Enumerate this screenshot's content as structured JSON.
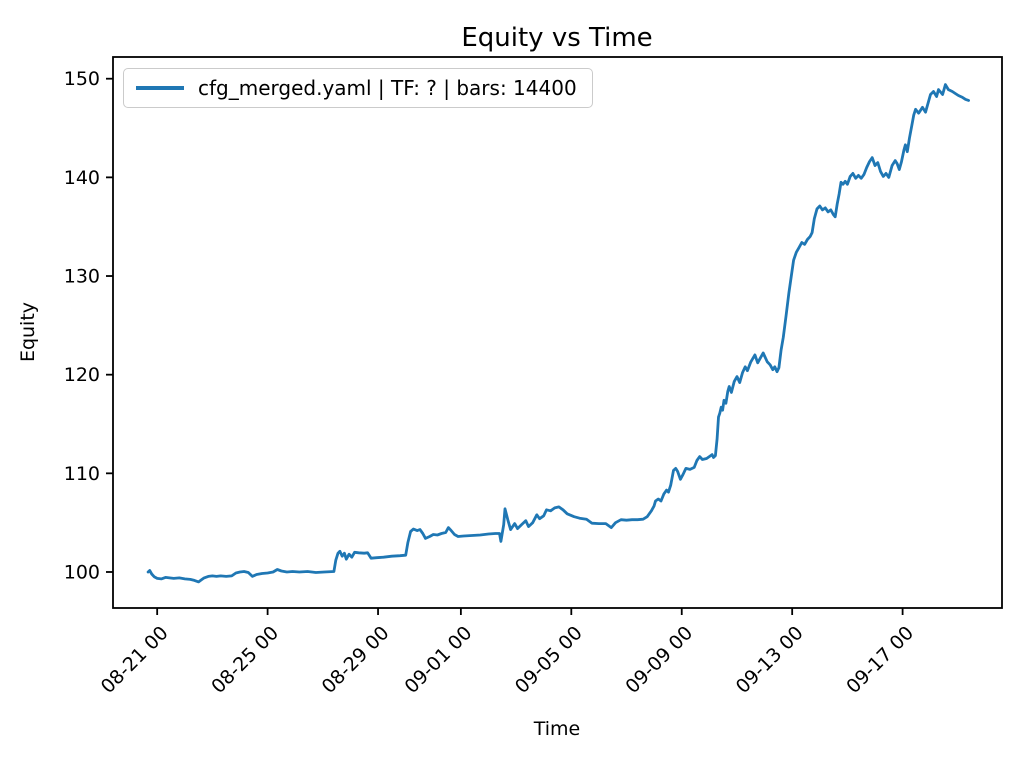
{
  "window": {
    "background": "#ffffff"
  },
  "chart_data": {
    "type": "line",
    "title": "Equity vs Time",
    "xlabel": "Time",
    "ylabel": "Equity",
    "legend": {
      "position": "upper-left",
      "entries": [
        {
          "label": "cfg_merged.yaml | TF: ? | bars: 14400",
          "color": "#1f77b4"
        }
      ]
    },
    "grid": false,
    "x_unit_note": "x values are fractional day offsets; day 0 corresponds to the day before the 08-21 00 tick",
    "xlim": [
      -0.6,
      31.6
    ],
    "ylim": [
      96.35,
      152.2
    ],
    "xticks": {
      "rotation": 45,
      "positions": [
        1,
        5,
        9,
        12,
        16,
        20,
        24,
        28
      ],
      "labels": [
        "08-21 00",
        "08-25 00",
        "08-29 00",
        "09-01 00",
        "09-05 00",
        "09-09 00",
        "09-13 00",
        "09-17 00"
      ]
    },
    "yticks": {
      "positions": [
        100,
        110,
        120,
        130,
        140,
        150
      ],
      "labels": [
        "100",
        "110",
        "120",
        "130",
        "140",
        "150"
      ]
    },
    "series": [
      {
        "name": "cfg_merged.yaml | TF: ? | bars: 14400",
        "color": "#1f77b4",
        "line_width": 2.8,
        "points": [
          [
            0.67,
            100.0
          ],
          [
            0.73,
            100.15
          ],
          [
            0.8,
            99.8
          ],
          [
            0.9,
            99.5
          ],
          [
            1.0,
            99.35
          ],
          [
            1.15,
            99.3
          ],
          [
            1.3,
            99.45
          ],
          [
            1.45,
            99.4
          ],
          [
            1.6,
            99.35
          ],
          [
            1.8,
            99.4
          ],
          [
            2.0,
            99.3
          ],
          [
            2.2,
            99.25
          ],
          [
            2.35,
            99.15
          ],
          [
            2.5,
            99.0
          ],
          [
            2.6,
            99.2
          ],
          [
            2.7,
            99.4
          ],
          [
            2.85,
            99.55
          ],
          [
            3.0,
            99.6
          ],
          [
            3.15,
            99.55
          ],
          [
            3.3,
            99.6
          ],
          [
            3.5,
            99.55
          ],
          [
            3.7,
            99.6
          ],
          [
            3.85,
            99.9
          ],
          [
            4.0,
            100.0
          ],
          [
            4.15,
            100.05
          ],
          [
            4.3,
            99.95
          ],
          [
            4.45,
            99.55
          ],
          [
            4.6,
            99.75
          ],
          [
            4.8,
            99.85
          ],
          [
            5.0,
            99.9
          ],
          [
            5.2,
            100.0
          ],
          [
            5.35,
            100.25
          ],
          [
            5.5,
            100.1
          ],
          [
            5.7,
            100.0
          ],
          [
            5.9,
            100.05
          ],
          [
            6.15,
            100.0
          ],
          [
            6.45,
            100.05
          ],
          [
            6.75,
            99.95
          ],
          [
            7.05,
            100.0
          ],
          [
            7.4,
            100.05
          ],
          [
            7.47,
            101.2
          ],
          [
            7.55,
            101.9
          ],
          [
            7.62,
            102.1
          ],
          [
            7.7,
            101.6
          ],
          [
            7.78,
            101.9
          ],
          [
            7.85,
            101.3
          ],
          [
            7.95,
            101.8
          ],
          [
            8.05,
            101.5
          ],
          [
            8.15,
            102.0
          ],
          [
            8.3,
            101.95
          ],
          [
            8.5,
            101.9
          ],
          [
            8.62,
            101.95
          ],
          [
            8.75,
            101.4
          ],
          [
            8.95,
            101.45
          ],
          [
            9.2,
            101.5
          ],
          [
            9.5,
            101.6
          ],
          [
            9.8,
            101.65
          ],
          [
            10.0,
            101.7
          ],
          [
            10.08,
            103.0
          ],
          [
            10.18,
            104.1
          ],
          [
            10.28,
            104.35
          ],
          [
            10.42,
            104.2
          ],
          [
            10.52,
            104.3
          ],
          [
            10.62,
            103.9
          ],
          [
            10.72,
            103.4
          ],
          [
            10.87,
            103.6
          ],
          [
            11.0,
            103.8
          ],
          [
            11.15,
            103.75
          ],
          [
            11.3,
            103.9
          ],
          [
            11.45,
            104.0
          ],
          [
            11.55,
            104.5
          ],
          [
            11.65,
            104.2
          ],
          [
            11.77,
            103.8
          ],
          [
            11.9,
            103.6
          ],
          [
            12.1,
            103.65
          ],
          [
            12.4,
            103.7
          ],
          [
            12.7,
            103.75
          ],
          [
            13.0,
            103.85
          ],
          [
            13.25,
            103.9
          ],
          [
            13.4,
            103.9
          ],
          [
            13.45,
            103.1
          ],
          [
            13.55,
            104.8
          ],
          [
            13.6,
            106.4
          ],
          [
            13.7,
            105.3
          ],
          [
            13.8,
            104.3
          ],
          [
            13.95,
            104.9
          ],
          [
            14.05,
            104.4
          ],
          [
            14.2,
            104.8
          ],
          [
            14.35,
            105.2
          ],
          [
            14.45,
            104.6
          ],
          [
            14.6,
            105.0
          ],
          [
            14.75,
            105.8
          ],
          [
            14.85,
            105.4
          ],
          [
            15.0,
            105.7
          ],
          [
            15.1,
            106.3
          ],
          [
            15.25,
            106.2
          ],
          [
            15.4,
            106.5
          ],
          [
            15.55,
            106.6
          ],
          [
            15.7,
            106.3
          ],
          [
            15.85,
            105.9
          ],
          [
            16.1,
            105.6
          ],
          [
            16.3,
            105.45
          ],
          [
            16.55,
            105.35
          ],
          [
            16.75,
            104.95
          ],
          [
            17.0,
            104.9
          ],
          [
            17.25,
            104.9
          ],
          [
            17.45,
            104.5
          ],
          [
            17.6,
            105.0
          ],
          [
            17.8,
            105.3
          ],
          [
            18.0,
            105.25
          ],
          [
            18.2,
            105.3
          ],
          [
            18.4,
            105.3
          ],
          [
            18.6,
            105.35
          ],
          [
            18.75,
            105.6
          ],
          [
            18.9,
            106.2
          ],
          [
            19.0,
            106.7
          ],
          [
            19.05,
            107.2
          ],
          [
            19.15,
            107.4
          ],
          [
            19.25,
            107.2
          ],
          [
            19.35,
            107.9
          ],
          [
            19.45,
            108.3
          ],
          [
            19.52,
            108.1
          ],
          [
            19.6,
            108.8
          ],
          [
            19.7,
            110.3
          ],
          [
            19.78,
            110.5
          ],
          [
            19.85,
            110.2
          ],
          [
            19.95,
            109.4
          ],
          [
            20.05,
            109.9
          ],
          [
            20.15,
            110.5
          ],
          [
            20.3,
            110.4
          ],
          [
            20.45,
            110.6
          ],
          [
            20.55,
            111.3
          ],
          [
            20.65,
            111.7
          ],
          [
            20.75,
            111.4
          ],
          [
            20.9,
            111.5
          ],
          [
            21.0,
            111.7
          ],
          [
            21.1,
            111.9
          ],
          [
            21.15,
            111.6
          ],
          [
            21.22,
            111.8
          ],
          [
            21.28,
            113.5
          ],
          [
            21.33,
            115.7
          ],
          [
            21.38,
            116.1
          ],
          [
            21.43,
            116.7
          ],
          [
            21.48,
            116.4
          ],
          [
            21.53,
            117.4
          ],
          [
            21.6,
            117.1
          ],
          [
            21.67,
            118.3
          ],
          [
            21.72,
            118.8
          ],
          [
            21.8,
            118.2
          ],
          [
            21.9,
            119.3
          ],
          [
            22.0,
            119.8
          ],
          [
            22.1,
            119.2
          ],
          [
            22.2,
            120.2
          ],
          [
            22.3,
            120.8
          ],
          [
            22.38,
            120.4
          ],
          [
            22.5,
            121.3
          ],
          [
            22.65,
            122.0
          ],
          [
            22.75,
            121.2
          ],
          [
            22.85,
            121.7
          ],
          [
            22.95,
            122.2
          ],
          [
            23.1,
            121.3
          ],
          [
            23.2,
            121.0
          ],
          [
            23.3,
            120.5
          ],
          [
            23.37,
            120.8
          ],
          [
            23.45,
            120.3
          ],
          [
            23.52,
            120.7
          ],
          [
            23.6,
            122.5
          ],
          [
            23.68,
            123.8
          ],
          [
            23.78,
            126.0
          ],
          [
            23.88,
            128.3
          ],
          [
            23.98,
            130.2
          ],
          [
            24.05,
            131.6
          ],
          [
            24.15,
            132.4
          ],
          [
            24.25,
            132.9
          ],
          [
            24.35,
            133.4
          ],
          [
            24.45,
            133.2
          ],
          [
            24.55,
            133.7
          ],
          [
            24.65,
            134.0
          ],
          [
            24.72,
            134.4
          ],
          [
            24.8,
            135.8
          ],
          [
            24.9,
            136.8
          ],
          [
            25.0,
            137.1
          ],
          [
            25.1,
            136.7
          ],
          [
            25.2,
            136.9
          ],
          [
            25.3,
            136.5
          ],
          [
            25.4,
            136.7
          ],
          [
            25.5,
            136.2
          ],
          [
            25.56,
            136.0
          ],
          [
            25.63,
            137.3
          ],
          [
            25.7,
            138.3
          ],
          [
            25.77,
            139.5
          ],
          [
            25.84,
            139.3
          ],
          [
            25.92,
            139.6
          ],
          [
            26.0,
            139.3
          ],
          [
            26.1,
            140.1
          ],
          [
            26.2,
            140.4
          ],
          [
            26.3,
            139.9
          ],
          [
            26.4,
            140.2
          ],
          [
            26.5,
            139.9
          ],
          [
            26.6,
            140.3
          ],
          [
            26.7,
            141.0
          ],
          [
            26.8,
            141.6
          ],
          [
            26.9,
            142.0
          ],
          [
            27.0,
            141.2
          ],
          [
            27.1,
            141.5
          ],
          [
            27.2,
            140.6
          ],
          [
            27.3,
            140.1
          ],
          [
            27.4,
            140.4
          ],
          [
            27.5,
            140.0
          ],
          [
            27.62,
            141.2
          ],
          [
            27.73,
            141.7
          ],
          [
            27.8,
            141.4
          ],
          [
            27.88,
            140.8
          ],
          [
            27.96,
            141.6
          ],
          [
            28.05,
            142.8
          ],
          [
            28.1,
            143.3
          ],
          [
            28.17,
            142.6
          ],
          [
            28.25,
            144.0
          ],
          [
            28.33,
            145.2
          ],
          [
            28.4,
            146.3
          ],
          [
            28.47,
            146.9
          ],
          [
            28.58,
            146.5
          ],
          [
            28.72,
            147.1
          ],
          [
            28.83,
            146.6
          ],
          [
            29.01,
            148.4
          ],
          [
            29.12,
            148.7
          ],
          [
            29.23,
            148.2
          ],
          [
            29.3,
            148.9
          ],
          [
            29.45,
            148.4
          ],
          [
            29.55,
            149.4
          ],
          [
            29.66,
            148.9
          ],
          [
            29.8,
            148.7
          ],
          [
            29.91,
            148.5
          ],
          [
            30.02,
            148.3
          ],
          [
            30.17,
            148.1
          ],
          [
            30.28,
            147.9
          ],
          [
            30.39,
            147.8
          ]
        ]
      }
    ]
  }
}
